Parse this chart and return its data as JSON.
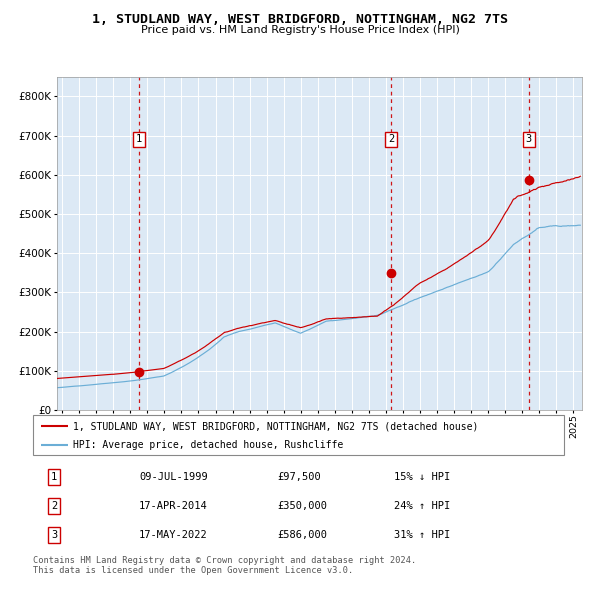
{
  "title1": "1, STUDLAND WAY, WEST BRIDGFORD, NOTTINGHAM, NG2 7TS",
  "title2": "Price paid vs. HM Land Registry's House Price Index (HPI)",
  "legend_line1": "1, STUDLAND WAY, WEST BRIDGFORD, NOTTINGHAM, NG2 7TS (detached house)",
  "legend_line2": "HPI: Average price, detached house, Rushcliffe",
  "transactions": [
    {
      "num": 1,
      "date": "09-JUL-1999",
      "year": 1999.52,
      "price": 97500,
      "pct": "15%",
      "dir": "↓"
    },
    {
      "num": 2,
      "date": "17-APR-2014",
      "year": 2014.29,
      "price": 350000,
      "pct": "24%",
      "dir": "↑"
    },
    {
      "num": 3,
      "date": "17-MAY-2022",
      "year": 2022.38,
      "price": 586000,
      "pct": "31%",
      "dir": "↑"
    }
  ],
  "hpi_color": "#6baed6",
  "price_color": "#cc0000",
  "dashed_line_color": "#cc0000",
  "bg_color": "#dce9f5",
  "grid_color": "#ffffff",
  "ylim": [
    0,
    850000
  ],
  "xlim_start": 1994.7,
  "xlim_end": 2025.5,
  "footer": "Contains HM Land Registry data © Crown copyright and database right 2024.\nThis data is licensed under the Open Government Licence v3.0."
}
